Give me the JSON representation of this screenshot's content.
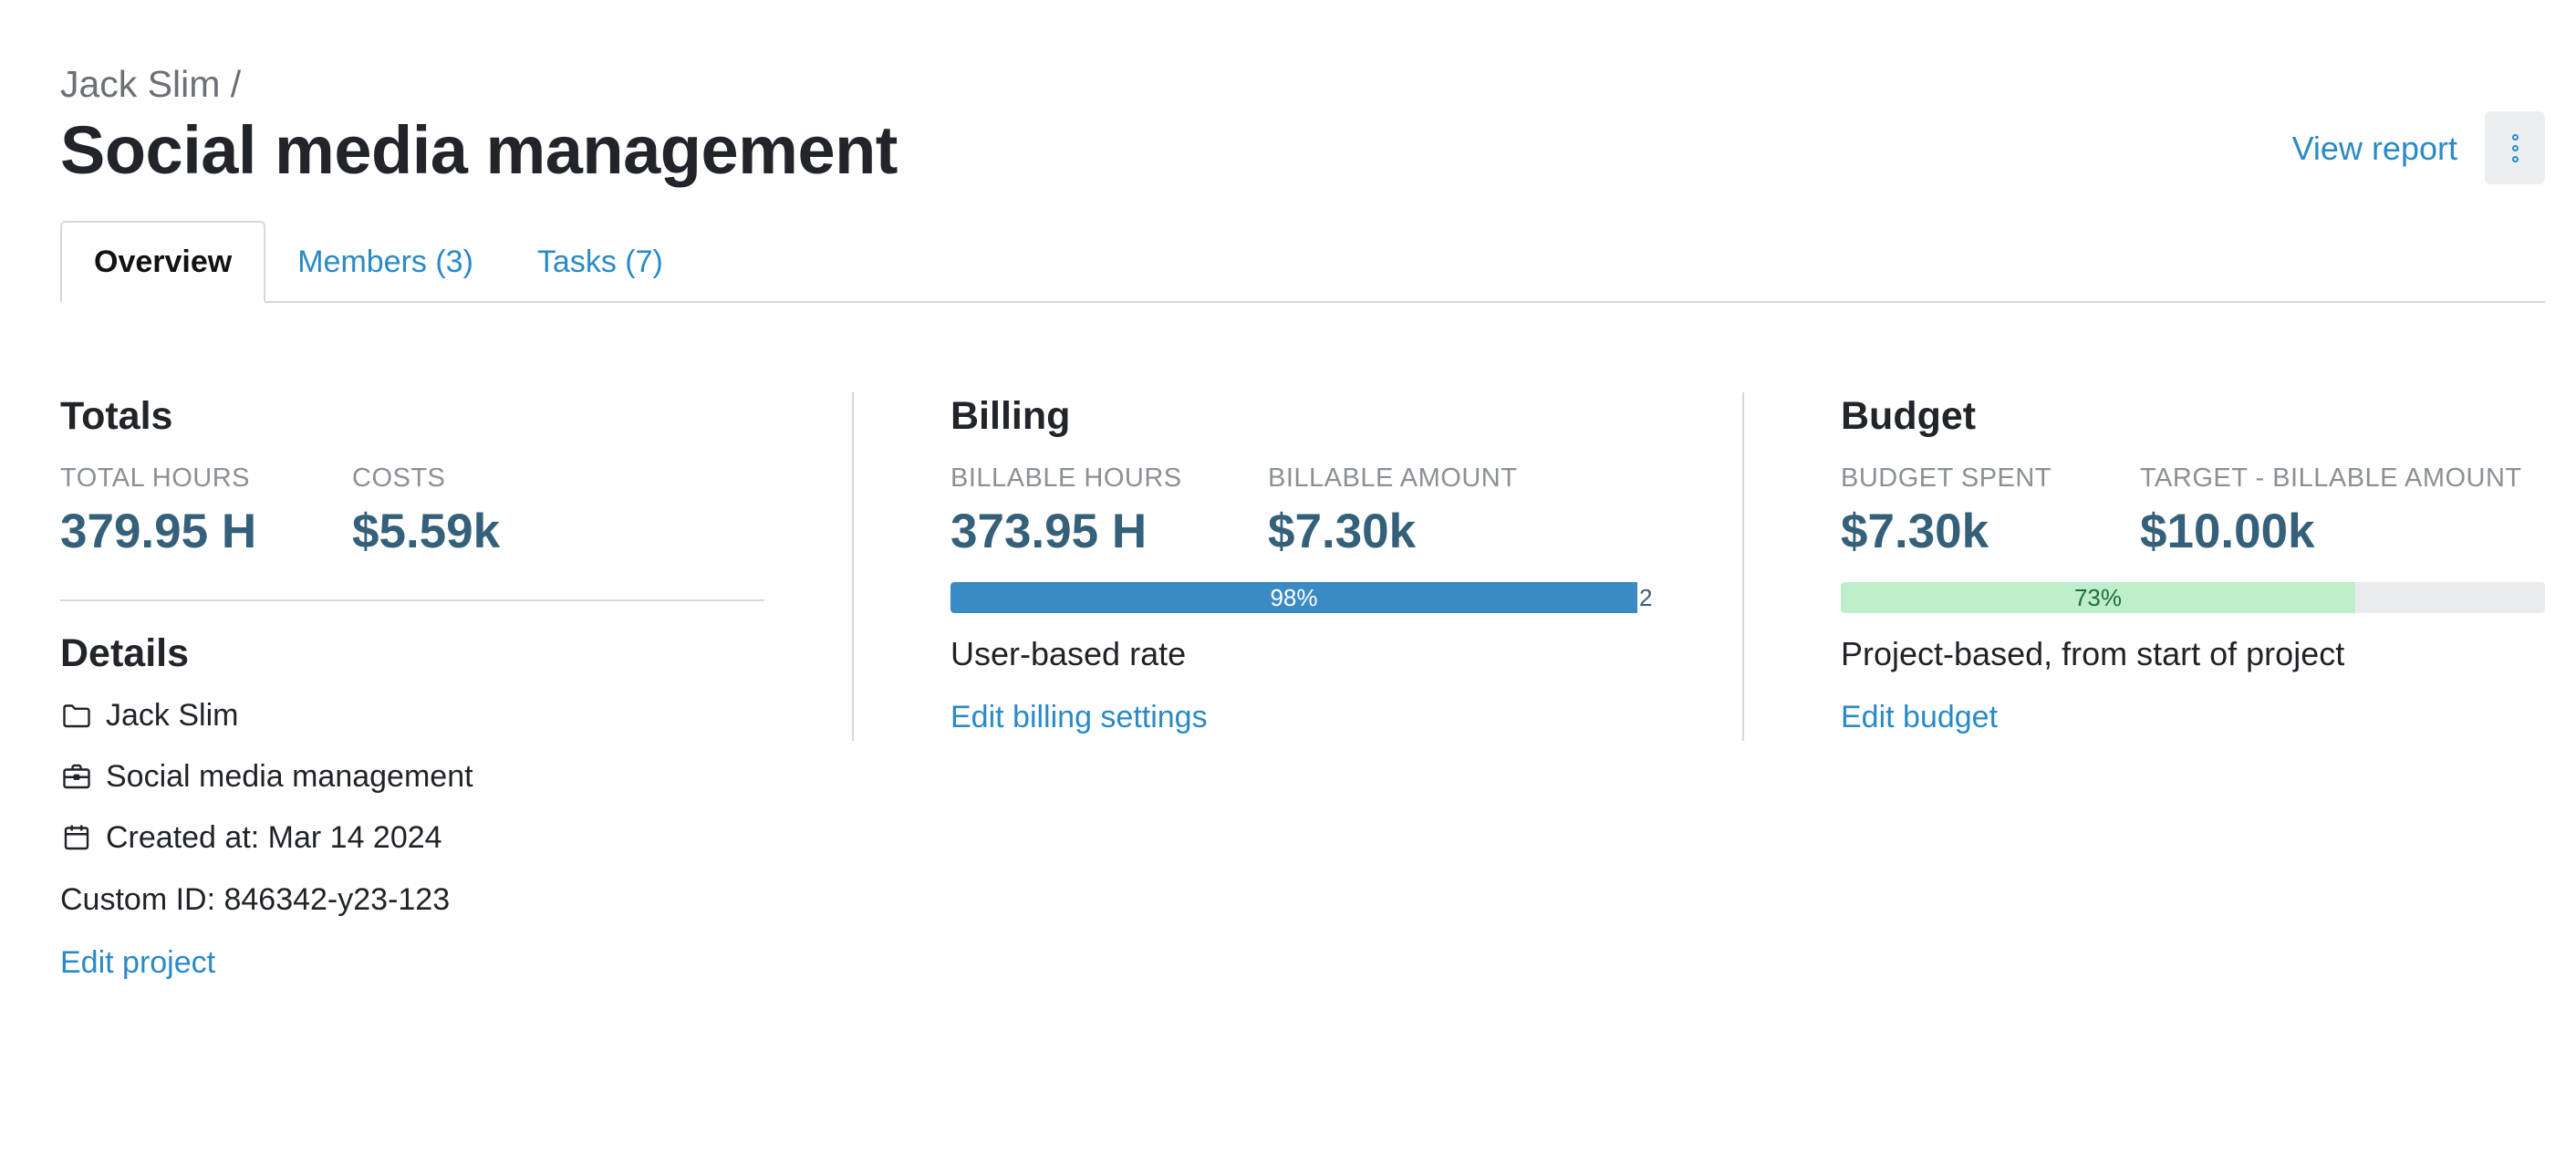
{
  "header": {
    "breadcrumb": "Jack Slim /",
    "title": "Social media management",
    "view_report_label": "View report",
    "more_icon": "vertical-dots-icon"
  },
  "tabs": [
    {
      "label": "Overview",
      "active": true
    },
    {
      "label": "Members (3)",
      "active": false
    },
    {
      "label": "Tasks (7)",
      "active": false
    }
  ],
  "totals": {
    "title": "Totals",
    "total_hours_label": "TOTAL HOURS",
    "total_hours_value": "379.95 H",
    "costs_label": "COSTS",
    "costs_value": "$5.59k"
  },
  "details": {
    "title": "Details",
    "client": "Jack Slim",
    "project": "Social media management",
    "created_at": "Created at: Mar 14 2024",
    "custom_id": "Custom ID: 846342-y23-123",
    "edit_label": "Edit project",
    "icons": {
      "client": "folder-icon",
      "project": "briefcase-icon",
      "created": "calendar-icon"
    }
  },
  "billing": {
    "title": "Billing",
    "billable_hours_label": "BILLABLE HOURS",
    "billable_hours_value": "373.95 H",
    "billable_amount_label": "BILLABLE AMOUNT",
    "billable_amount_value": "$7.30k",
    "progress_percent": 98,
    "progress_label": "98%",
    "progress_remainder_label": "2",
    "rate_text": "User-based rate",
    "edit_label": "Edit billing settings",
    "bar_color": "#3a8bc3"
  },
  "budget": {
    "title": "Budget",
    "budget_spent_label": "BUDGET SPENT",
    "budget_spent_value": "$7.30k",
    "target_label": "TARGET - BILLABLE AMOUNT",
    "target_value": "$10.00k",
    "progress_percent": 73,
    "progress_label": "73%",
    "type_text": "Project-based, from start of project",
    "edit_label": "Edit budget",
    "bar_color": "#bfeecd"
  },
  "colors": {
    "link": "#2a8ac6",
    "stat_value": "#35607a",
    "muted": "#8a9095",
    "divider": "#d5d8db"
  }
}
